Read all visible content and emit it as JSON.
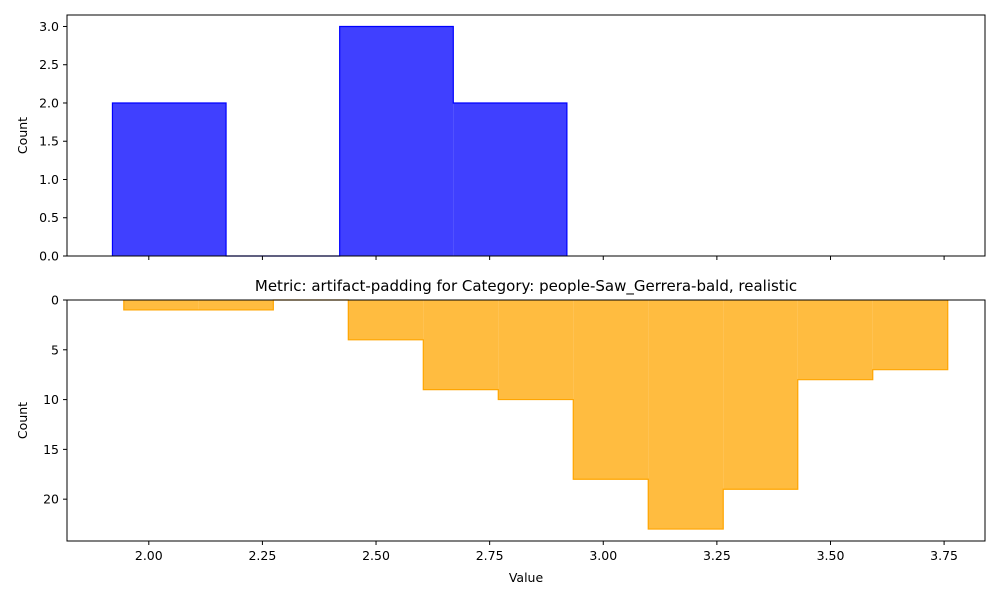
{
  "chart_data": [
    {
      "type": "histogram-step-filled",
      "title": "",
      "xlabel": "",
      "ylabel": "Count",
      "color": "#0000ff",
      "fill_alpha": 0.75,
      "x_range": [
        1.82,
        3.84
      ],
      "ylim": [
        0,
        3.15
      ],
      "yticks": [
        0.0,
        0.5,
        1.0,
        1.5,
        2.0,
        2.5,
        3.0
      ],
      "ytick_labels": [
        "0.0",
        "0.5",
        "1.0",
        "1.5",
        "2.0",
        "2.5",
        "3.0"
      ],
      "xticks": [
        2.0,
        2.25,
        2.5,
        2.75,
        3.0,
        3.25,
        3.5,
        3.75
      ],
      "xtick_labels_shown": false,
      "bins": [
        {
          "x0": 1.92,
          "x1": 2.17,
          "count": 2
        },
        {
          "x0": 2.17,
          "x1": 2.42,
          "count": 0
        },
        {
          "x0": 2.42,
          "x1": 2.67,
          "count": 3
        },
        {
          "x0": 2.67,
          "x1": 2.92,
          "count": 2
        }
      ]
    },
    {
      "type": "histogram-step-filled",
      "title": "Metric: artifact-padding for Category: people-Saw_Gerrera-bald, realistic",
      "xlabel": "Value",
      "ylabel": "Count",
      "y_inverted": true,
      "color": "#ffa500",
      "fill_alpha": 0.75,
      "x_range": [
        1.82,
        3.84
      ],
      "ylim": [
        0,
        24.2
      ],
      "yticks": [
        0,
        5,
        10,
        15,
        20
      ],
      "ytick_labels": [
        "0",
        "5",
        "10",
        "15",
        "20"
      ],
      "xticks": [
        2.0,
        2.25,
        2.5,
        2.75,
        3.0,
        3.25,
        3.5,
        3.75
      ],
      "xtick_labels": [
        "2.00",
        "2.25",
        "2.50",
        "2.75",
        "3.00",
        "3.25",
        "3.50",
        "3.75"
      ],
      "bins": [
        {
          "x0": 1.945,
          "x1": 2.11,
          "count": 1
        },
        {
          "x0": 2.11,
          "x1": 2.274,
          "count": 1
        },
        {
          "x0": 2.274,
          "x1": 2.439,
          "count": 0
        },
        {
          "x0": 2.439,
          "x1": 2.604,
          "count": 4
        },
        {
          "x0": 2.604,
          "x1": 2.769,
          "count": 9
        },
        {
          "x0": 2.769,
          "x1": 2.934,
          "count": 10
        },
        {
          "x0": 2.934,
          "x1": 3.099,
          "count": 18
        },
        {
          "x0": 3.099,
          "x1": 3.264,
          "count": 23
        },
        {
          "x0": 3.264,
          "x1": 3.428,
          "count": 19
        },
        {
          "x0": 3.428,
          "x1": 3.593,
          "count": 8
        },
        {
          "x0": 3.593,
          "x1": 3.758,
          "count": 7
        }
      ]
    }
  ]
}
